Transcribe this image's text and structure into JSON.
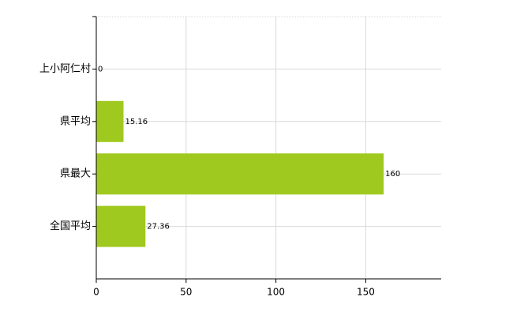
{
  "chart_data": {
    "type": "bar",
    "orientation": "horizontal",
    "categories": [
      "上小阿仁村",
      "県平均",
      "県最大",
      "全国平均"
    ],
    "values": [
      0,
      15.16,
      160,
      27.36
    ],
    "color": "#9fc91f",
    "xlim": [
      0,
      192
    ],
    "xticks": [
      0,
      50,
      100,
      150
    ],
    "grid": true
  }
}
